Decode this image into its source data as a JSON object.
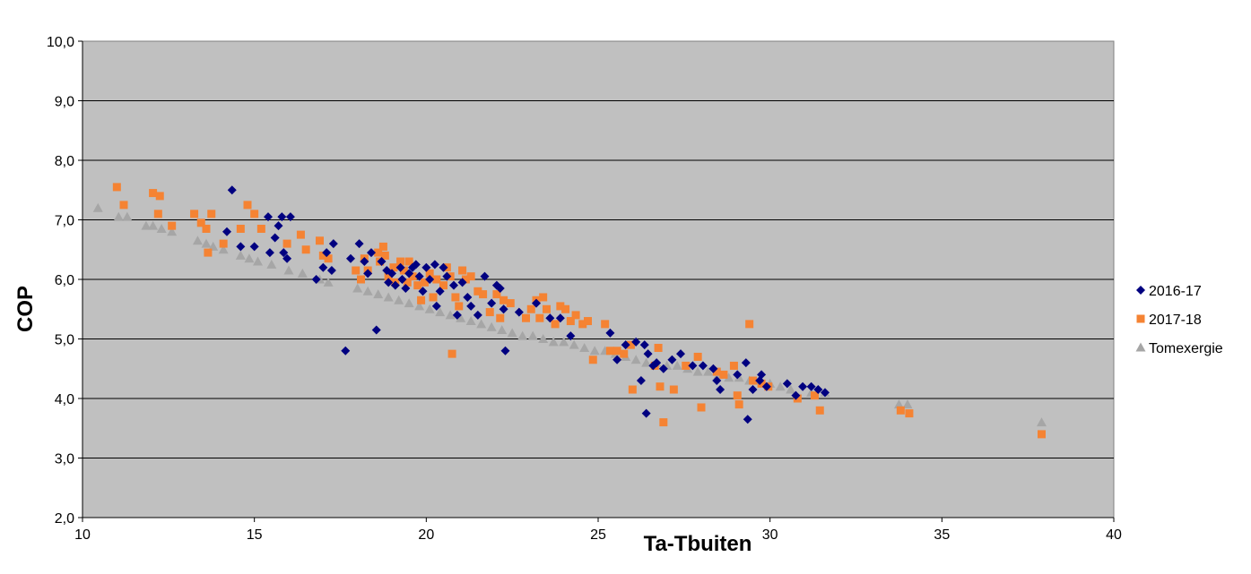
{
  "chart_data": {
    "type": "scatter",
    "title": "",
    "xlabel": "Ta-Tbuiten",
    "ylabel": "COP",
    "xlim": [
      10,
      40
    ],
    "ylim": [
      2.0,
      10.0
    ],
    "x_ticks": [
      "10",
      "15",
      "20",
      "25",
      "30",
      "35",
      "40"
    ],
    "y_ticks": [
      "2,0",
      "3,0",
      "4,0",
      "5,0",
      "6,0",
      "7,0",
      "8,0",
      "9,0",
      "10,0"
    ],
    "grid": "horizontal",
    "legend_position": "right",
    "plot_background": "#C0C0C0",
    "series": [
      {
        "name": "2016-17",
        "marker": "diamond",
        "color": "#000080",
        "points": [
          [
            14.2,
            6.8
          ],
          [
            14.35,
            7.5
          ],
          [
            14.6,
            6.55
          ],
          [
            15.0,
            6.55
          ],
          [
            15.4,
            7.05
          ],
          [
            15.45,
            6.45
          ],
          [
            15.6,
            6.7
          ],
          [
            15.7,
            6.9
          ],
          [
            15.8,
            7.05
          ],
          [
            15.85,
            6.45
          ],
          [
            15.95,
            6.35
          ],
          [
            16.05,
            7.05
          ],
          [
            16.8,
            6.0
          ],
          [
            17.0,
            6.2
          ],
          [
            17.1,
            6.45
          ],
          [
            17.3,
            6.6
          ],
          [
            17.25,
            6.15
          ],
          [
            17.65,
            4.8
          ],
          [
            17.8,
            6.35
          ],
          [
            18.05,
            6.6
          ],
          [
            18.2,
            6.3
          ],
          [
            18.3,
            6.1
          ],
          [
            18.4,
            6.45
          ],
          [
            18.55,
            5.15
          ],
          [
            18.7,
            6.3
          ],
          [
            18.85,
            6.15
          ],
          [
            18.9,
            5.95
          ],
          [
            19.0,
            6.1
          ],
          [
            19.1,
            5.9
          ],
          [
            19.25,
            6.2
          ],
          [
            19.3,
            6.0
          ],
          [
            19.4,
            5.85
          ],
          [
            19.5,
            6.1
          ],
          [
            19.6,
            6.2
          ],
          [
            19.7,
            6.25
          ],
          [
            19.8,
            6.05
          ],
          [
            19.9,
            5.8
          ],
          [
            20.0,
            6.2
          ],
          [
            20.1,
            6.0
          ],
          [
            20.25,
            6.25
          ],
          [
            20.3,
            5.55
          ],
          [
            20.4,
            5.8
          ],
          [
            20.5,
            6.2
          ],
          [
            20.6,
            6.05
          ],
          [
            20.8,
            5.9
          ],
          [
            20.9,
            5.4
          ],
          [
            21.05,
            5.95
          ],
          [
            21.2,
            5.7
          ],
          [
            21.3,
            5.55
          ],
          [
            21.5,
            5.4
          ],
          [
            21.7,
            6.05
          ],
          [
            21.9,
            5.6
          ],
          [
            22.05,
            5.9
          ],
          [
            22.15,
            5.85
          ],
          [
            22.25,
            5.5
          ],
          [
            22.3,
            4.8
          ],
          [
            22.7,
            5.45
          ],
          [
            23.2,
            5.6
          ],
          [
            23.6,
            5.35
          ],
          [
            23.9,
            5.35
          ],
          [
            24.2,
            5.05
          ],
          [
            25.35,
            5.1
          ],
          [
            25.55,
            4.65
          ],
          [
            25.8,
            4.9
          ],
          [
            26.1,
            4.95
          ],
          [
            26.25,
            4.3
          ],
          [
            26.4,
            3.75
          ],
          [
            26.35,
            4.9
          ],
          [
            26.45,
            4.75
          ],
          [
            26.6,
            4.55
          ],
          [
            26.7,
            4.6
          ],
          [
            26.9,
            4.5
          ],
          [
            27.15,
            4.65
          ],
          [
            27.4,
            4.75
          ],
          [
            27.75,
            4.55
          ],
          [
            28.05,
            4.55
          ],
          [
            28.35,
            4.5
          ],
          [
            28.45,
            4.3
          ],
          [
            28.55,
            4.15
          ],
          [
            29.05,
            4.4
          ],
          [
            29.3,
            4.6
          ],
          [
            29.35,
            3.65
          ],
          [
            29.5,
            4.15
          ],
          [
            29.7,
            4.3
          ],
          [
            29.75,
            4.4
          ],
          [
            29.9,
            4.2
          ],
          [
            30.5,
            4.25
          ],
          [
            30.75,
            4.05
          ],
          [
            30.95,
            4.2
          ],
          [
            31.2,
            4.2
          ],
          [
            31.4,
            4.15
          ],
          [
            31.6,
            4.1
          ]
        ]
      },
      {
        "name": "2017-18",
        "marker": "square",
        "color": "#F58333",
        "points": [
          [
            11.0,
            7.55
          ],
          [
            11.2,
            7.25
          ],
          [
            12.05,
            7.45
          ],
          [
            12.2,
            7.1
          ],
          [
            12.25,
            7.4
          ],
          [
            12.6,
            6.9
          ],
          [
            13.25,
            7.1
          ],
          [
            13.45,
            6.95
          ],
          [
            13.6,
            6.85
          ],
          [
            13.65,
            6.45
          ],
          [
            13.75,
            7.1
          ],
          [
            14.1,
            6.6
          ],
          [
            14.6,
            6.85
          ],
          [
            14.8,
            7.25
          ],
          [
            15.0,
            7.1
          ],
          [
            15.2,
            6.85
          ],
          [
            15.95,
            6.6
          ],
          [
            16.35,
            6.75
          ],
          [
            16.5,
            6.5
          ],
          [
            16.9,
            6.65
          ],
          [
            17.0,
            6.4
          ],
          [
            17.15,
            6.35
          ],
          [
            17.95,
            6.15
          ],
          [
            18.1,
            6.0
          ],
          [
            18.2,
            6.35
          ],
          [
            18.3,
            6.15
          ],
          [
            18.6,
            6.45
          ],
          [
            18.65,
            6.3
          ],
          [
            18.75,
            6.55
          ],
          [
            18.8,
            6.4
          ],
          [
            18.9,
            6.05
          ],
          [
            19.05,
            6.2
          ],
          [
            19.1,
            5.95
          ],
          [
            19.25,
            6.3
          ],
          [
            19.35,
            6.15
          ],
          [
            19.45,
            5.95
          ],
          [
            19.5,
            6.3
          ],
          [
            19.6,
            6.05
          ],
          [
            19.75,
            5.9
          ],
          [
            19.85,
            5.65
          ],
          [
            19.95,
            5.95
          ],
          [
            20.1,
            6.1
          ],
          [
            20.2,
            5.7
          ],
          [
            20.3,
            6.0
          ],
          [
            20.5,
            5.9
          ],
          [
            20.6,
            6.2
          ],
          [
            20.7,
            6.05
          ],
          [
            20.75,
            4.75
          ],
          [
            20.85,
            5.7
          ],
          [
            20.95,
            5.55
          ],
          [
            21.05,
            6.15
          ],
          [
            21.15,
            6.0
          ],
          [
            21.3,
            6.05
          ],
          [
            21.5,
            5.8
          ],
          [
            21.65,
            5.75
          ],
          [
            21.85,
            5.45
          ],
          [
            22.05,
            5.75
          ],
          [
            22.15,
            5.35
          ],
          [
            22.25,
            5.65
          ],
          [
            22.45,
            5.6
          ],
          [
            22.9,
            5.35
          ],
          [
            23.05,
            5.5
          ],
          [
            23.2,
            5.65
          ],
          [
            23.3,
            5.35
          ],
          [
            23.4,
            5.7
          ],
          [
            23.5,
            5.5
          ],
          [
            23.75,
            5.25
          ],
          [
            23.9,
            5.55
          ],
          [
            24.05,
            5.5
          ],
          [
            24.2,
            5.3
          ],
          [
            24.35,
            5.4
          ],
          [
            24.55,
            5.25
          ],
          [
            24.7,
            5.3
          ],
          [
            24.85,
            4.65
          ],
          [
            25.2,
            5.25
          ],
          [
            25.35,
            4.8
          ],
          [
            25.55,
            4.8
          ],
          [
            25.75,
            4.75
          ],
          [
            25.95,
            4.9
          ],
          [
            26.0,
            4.15
          ],
          [
            26.65,
            4.55
          ],
          [
            26.75,
            4.85
          ],
          [
            26.8,
            4.2
          ],
          [
            26.9,
            3.6
          ],
          [
            27.2,
            4.15
          ],
          [
            27.55,
            4.55
          ],
          [
            27.9,
            4.7
          ],
          [
            28.0,
            3.85
          ],
          [
            28.45,
            4.45
          ],
          [
            28.65,
            4.4
          ],
          [
            28.95,
            4.55
          ],
          [
            29.05,
            4.05
          ],
          [
            29.1,
            3.9
          ],
          [
            29.4,
            5.25
          ],
          [
            29.5,
            4.3
          ],
          [
            29.75,
            4.25
          ],
          [
            29.95,
            4.2
          ],
          [
            30.8,
            4.0
          ],
          [
            31.3,
            4.05
          ],
          [
            31.45,
            3.8
          ],
          [
            33.8,
            3.8
          ],
          [
            34.05,
            3.75
          ],
          [
            37.9,
            3.4
          ]
        ]
      },
      {
        "name": "Tomexergie",
        "marker": "triangle",
        "color": "#A6A6A6",
        "points": [
          [
            10.45,
            7.2
          ],
          [
            11.05,
            7.05
          ],
          [
            11.3,
            7.05
          ],
          [
            11.85,
            6.9
          ],
          [
            12.05,
            6.9
          ],
          [
            12.3,
            6.85
          ],
          [
            12.6,
            6.8
          ],
          [
            13.35,
            6.65
          ],
          [
            13.6,
            6.6
          ],
          [
            13.8,
            6.55
          ],
          [
            14.1,
            6.5
          ],
          [
            14.6,
            6.4
          ],
          [
            14.85,
            6.35
          ],
          [
            15.1,
            6.3
          ],
          [
            15.5,
            6.25
          ],
          [
            16.0,
            6.15
          ],
          [
            16.4,
            6.1
          ],
          [
            16.9,
            6.0
          ],
          [
            17.15,
            5.95
          ],
          [
            18.0,
            5.85
          ],
          [
            18.3,
            5.8
          ],
          [
            18.6,
            5.75
          ],
          [
            18.9,
            5.7
          ],
          [
            19.2,
            5.65
          ],
          [
            19.5,
            5.6
          ],
          [
            19.8,
            5.55
          ],
          [
            20.1,
            5.5
          ],
          [
            20.4,
            5.45
          ],
          [
            20.7,
            5.4
          ],
          [
            21.0,
            5.35
          ],
          [
            21.3,
            5.3
          ],
          [
            21.6,
            5.25
          ],
          [
            21.9,
            5.2
          ],
          [
            22.2,
            5.15
          ],
          [
            22.5,
            5.1
          ],
          [
            22.8,
            5.05
          ],
          [
            23.1,
            5.05
          ],
          [
            23.4,
            5.0
          ],
          [
            23.7,
            4.95
          ],
          [
            24.0,
            4.95
          ],
          [
            24.3,
            4.9
          ],
          [
            24.6,
            4.85
          ],
          [
            24.9,
            4.8
          ],
          [
            25.2,
            4.8
          ],
          [
            25.5,
            4.75
          ],
          [
            25.8,
            4.7
          ],
          [
            26.1,
            4.65
          ],
          [
            26.4,
            4.6
          ],
          [
            26.7,
            4.6
          ],
          [
            27.0,
            4.55
          ],
          [
            27.3,
            4.55
          ],
          [
            27.6,
            4.5
          ],
          [
            27.9,
            4.45
          ],
          [
            28.2,
            4.45
          ],
          [
            28.5,
            4.4
          ],
          [
            28.8,
            4.35
          ],
          [
            29.1,
            4.35
          ],
          [
            29.4,
            4.3
          ],
          [
            29.7,
            4.3
          ],
          [
            30.0,
            4.25
          ],
          [
            30.3,
            4.2
          ],
          [
            30.6,
            4.15
          ],
          [
            31.2,
            4.1
          ],
          [
            31.6,
            4.1
          ],
          [
            33.75,
            3.9
          ],
          [
            34.0,
            3.9
          ],
          [
            37.9,
            3.6
          ]
        ]
      }
    ]
  }
}
